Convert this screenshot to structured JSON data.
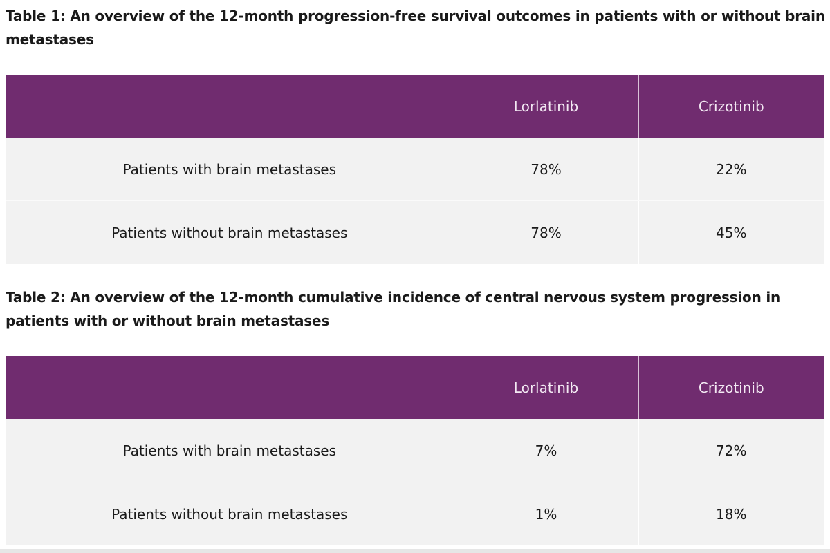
{
  "tables": [
    {
      "title": "Table 1: An overview of the 12-month progression-free survival outcomes in patients with or without brain metastases",
      "headers": [
        "",
        "Lorlatinib",
        "Crizotinib"
      ],
      "rows": [
        [
          "Patients with brain metastases",
          "78%",
          "22%"
        ],
        [
          "Patients without brain metastases",
          "78%",
          "45%"
        ]
      ]
    },
    {
      "title": "Table 2: An overview of the 12-month cumulative incidence of central nervous system progression in patients with or without brain metastases",
      "headers": [
        "",
        "Lorlatinib",
        "Crizotinib"
      ],
      "rows": [
        [
          "Patients with brain metastases",
          "7%",
          "72%"
        ],
        [
          "Patients without brain metastases",
          "1%",
          "18%"
        ]
      ]
    }
  ],
  "colors": {
    "header_bg": "#702c6f",
    "header_text": "#f3e9f3",
    "cell_bg": "#f2f2f2"
  }
}
